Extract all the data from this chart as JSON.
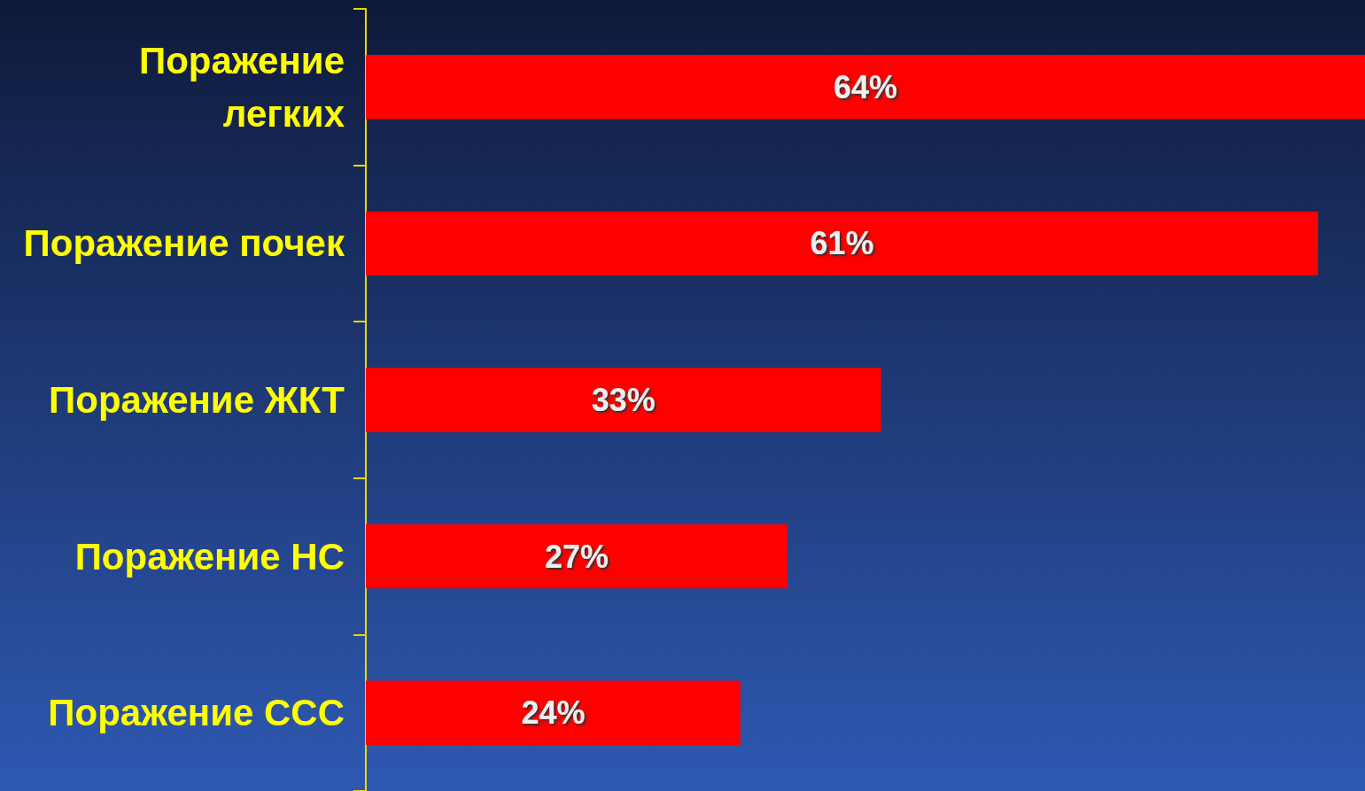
{
  "chart_data": {
    "type": "bar",
    "orientation": "horizontal",
    "categories": [
      "Поражение легких",
      "Поражение почек",
      "Поражение ЖКТ",
      "Поражение НС",
      "Поражение ССС"
    ],
    "values": [
      64,
      61,
      33,
      27,
      24
    ],
    "value_labels": [
      "64%",
      "61%",
      "33%",
      "27%",
      "24%"
    ],
    "color": "#ff0000",
    "xlim": [
      0,
      64
    ],
    "tick_labels": "y"
  }
}
